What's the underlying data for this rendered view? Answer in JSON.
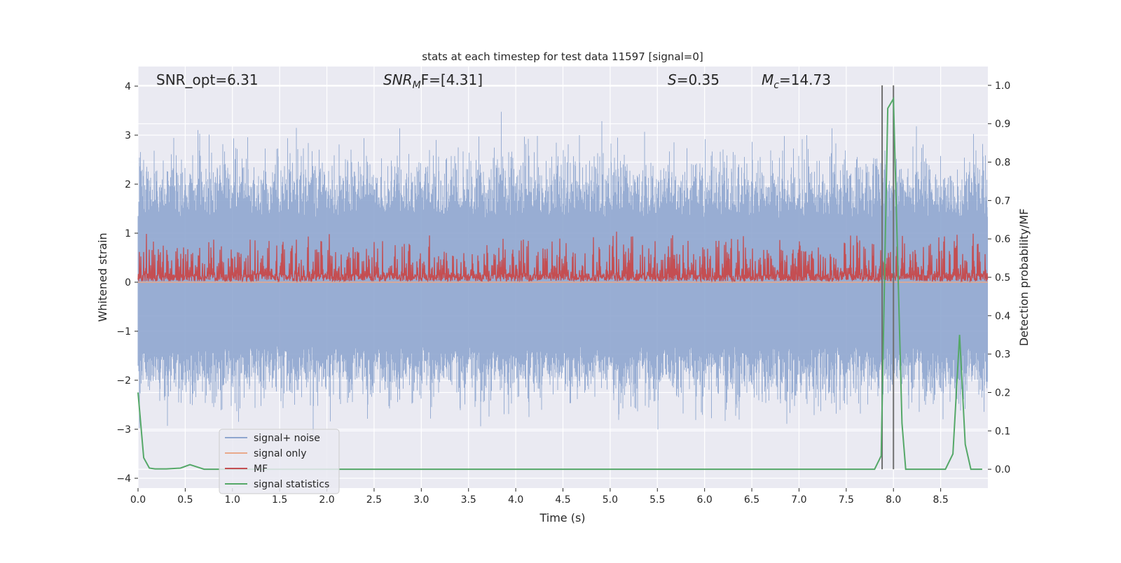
{
  "chart_data": {
    "type": "line",
    "title": "stats at each timestep for test data 11597 [signal=0]",
    "xlabel": "Time (s)",
    "ylabel": "Whitened strain",
    "y2label": "Detection probability/MF",
    "xlim": [
      0,
      9.0
    ],
    "ylim": [
      -4.2,
      4.4
    ],
    "y2lim": [
      -0.049,
      1.049
    ],
    "grid": true,
    "legend_position": "lower-left",
    "xticks": [
      "0.0",
      "0.5",
      "1.0",
      "1.5",
      "2.0",
      "2.5",
      "3.0",
      "3.5",
      "4.0",
      "4.5",
      "5.0",
      "5.5",
      "6.0",
      "6.5",
      "7.0",
      "7.5",
      "8.0",
      "8.5"
    ],
    "yticks": [
      "4",
      "3",
      "2",
      "1",
      "0",
      "−1",
      "−2",
      "−3",
      "−4"
    ],
    "y2ticks": [
      "1.0",
      "0.9",
      "0.8",
      "0.7",
      "0.6",
      "0.5",
      "0.4",
      "0.3",
      "0.2",
      "0.1",
      "0.0"
    ],
    "annotations": {
      "snr_opt": "SNR_opt=6.31",
      "snr_mf_main": "SNR",
      "snr_mf_sub": "M",
      "snr_mf_rest": "F=[4.31]",
      "s_main": "S",
      "s_rest": "=0.35",
      "mc_main": "M",
      "mc_sub": "c",
      "mc_rest": "=14.73"
    },
    "series": [
      {
        "name": "signal+ noise",
        "color": "#8fa6cf",
        "axis": "left",
        "note_shape": "noise, approx. ±1.5 typical, peaks up to ±4"
      },
      {
        "name": "signal only",
        "color": "#e9a98a",
        "axis": "left",
        "values_constant": 0
      },
      {
        "name": "MF",
        "color": "#c44e52",
        "axis": "right",
        "range": [
          0.49,
          0.62
        ]
      },
      {
        "name": "signal statistics",
        "color": "#55a868",
        "axis": "right",
        "x": [
          0.0,
          0.06,
          0.12,
          0.18,
          0.3,
          0.45,
          0.55,
          0.7,
          1.0,
          7.8,
          7.87,
          7.94,
          8.0,
          8.09,
          8.13,
          8.3,
          8.55,
          8.63,
          8.7,
          8.76,
          8.82,
          8.94
        ],
        "y": [
          0.2,
          0.03,
          0.003,
          0.001,
          0.001,
          0.003,
          0.012,
          0.0,
          0.0,
          0.0,
          0.035,
          0.94,
          0.965,
          0.12,
          0.0,
          0.0,
          0.0,
          0.04,
          0.35,
          0.065,
          0.0,
          0.0
        ]
      }
    ],
    "vlines": {
      "x": [
        7.88,
        8.0
      ],
      "color": "#707070"
    }
  }
}
